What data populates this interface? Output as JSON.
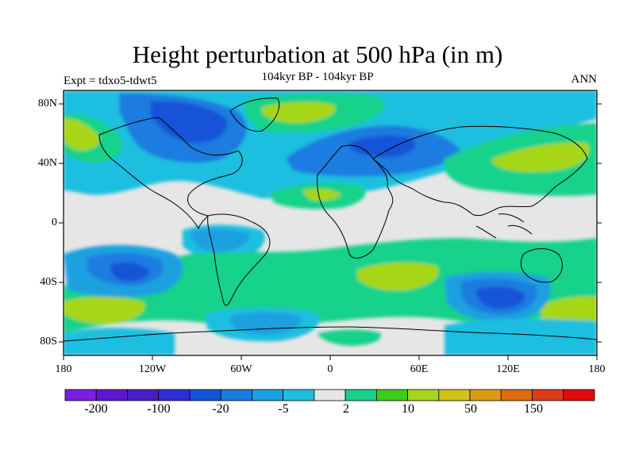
{
  "title": "Height perturbation at 500 hPa (in m)",
  "labels": {
    "left": "Expt = tdxo5-tdwt5",
    "center": "104kyr BP - 104kyr BP",
    "right": "ANN"
  },
  "axes": {
    "lat_ticks": [
      "80N",
      "40N",
      "0",
      "40S",
      "80S"
    ],
    "lon_ticks": [
      "180",
      "120W",
      "60W",
      "0",
      "60E",
      "120E",
      "180"
    ]
  },
  "colorbar": {
    "colors": [
      "#7a1ee6",
      "#5f16d2",
      "#4b1cc8",
      "#2f2fd6",
      "#1553d6",
      "#1a7be0",
      "#1aa0e0",
      "#1ebfdf",
      "#e6e6e6",
      "#18d28a",
      "#3ccd1a",
      "#a6d619",
      "#d2c316",
      "#dc9a12",
      "#dc6c0d",
      "#dc3c18",
      "#e10a0a"
    ],
    "labels": [
      "-200",
      "-100",
      "-20",
      "-5",
      "2",
      "10",
      "50",
      "150"
    ]
  },
  "chart_data": {
    "type": "map-contour",
    "field": "500 hPa height perturbation",
    "units": "m",
    "lon_range": [
      -180,
      180
    ],
    "lat_range": [
      -90,
      90
    ],
    "color_levels": [
      "-200",
      "-100",
      "-20",
      "-5",
      "2",
      "10",
      "50",
      "150"
    ]
  }
}
